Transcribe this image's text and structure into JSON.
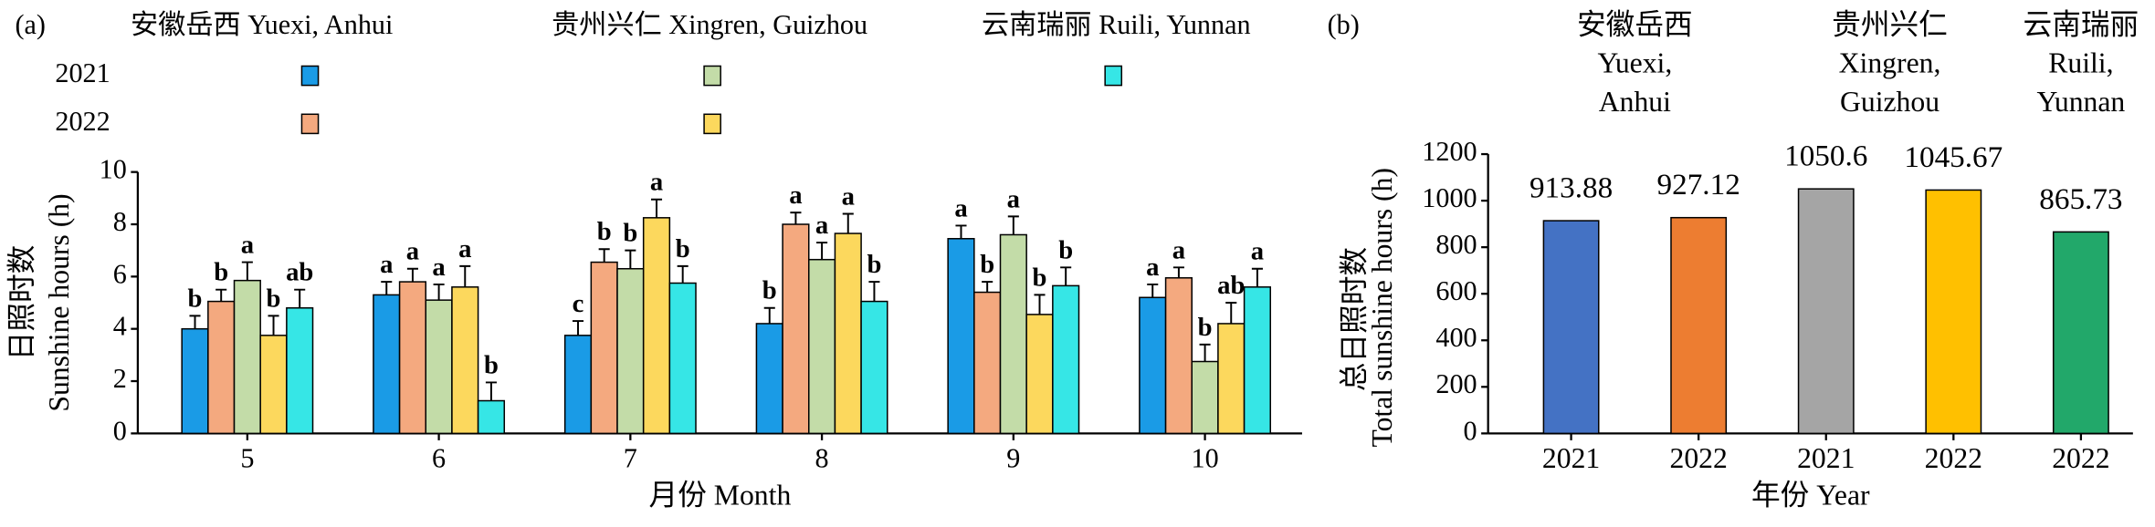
{
  "chart_data": [
    {
      "type": "grouped_bar_errors",
      "panel": "(a)",
      "legend": {
        "columns": [
          "安徽岳西 Yuexi, Anhui",
          "贵州兴仁 Xingren, Guizhou",
          "云南瑞丽 Ruili, Yunnan"
        ],
        "rows": [
          "2021",
          "2022"
        ]
      },
      "categories": [
        "5",
        "6",
        "7",
        "8",
        "9",
        "10"
      ],
      "series": [
        {
          "color": "#1a9be6",
          "values": [
            4.0,
            5.3,
            3.75,
            4.2,
            7.45,
            5.2
          ],
          "errors": [
            0.5,
            0.5,
            0.55,
            0.6,
            0.5,
            0.5
          ],
          "letters": [
            "b",
            "a",
            "c",
            "b",
            "a",
            "a"
          ]
        },
        {
          "color": "#f4a97f",
          "values": [
            5.05,
            5.8,
            6.55,
            8.0,
            5.4,
            5.95
          ],
          "errors": [
            0.45,
            0.5,
            0.5,
            0.45,
            0.4,
            0.4
          ],
          "letters": [
            "b",
            "a",
            "b",
            "a",
            "b",
            "a"
          ]
        },
        {
          "color": "#c3dca8",
          "values": [
            5.85,
            5.1,
            6.3,
            6.65,
            7.6,
            2.75
          ],
          "errors": [
            0.7,
            0.6,
            0.7,
            0.65,
            0.7,
            0.65
          ],
          "letters": [
            "a",
            "a",
            "b",
            "a",
            "a",
            "b"
          ]
        },
        {
          "color": "#fcd85d",
          "values": [
            3.75,
            5.6,
            8.25,
            7.65,
            4.55,
            4.2
          ],
          "errors": [
            0.75,
            0.8,
            0.7,
            0.75,
            0.75,
            0.8
          ],
          "letters": [
            "b",
            "a",
            "a",
            "a",
            "b",
            "ab"
          ]
        },
        {
          "color": "#36e6e6",
          "values": [
            4.8,
            1.25,
            5.75,
            5.05,
            5.65,
            5.6
          ],
          "errors": [
            0.7,
            0.7,
            0.65,
            0.75,
            0.7,
            0.7
          ],
          "letters": [
            "ab",
            "b",
            "b",
            "b",
            "b",
            "a"
          ]
        }
      ],
      "xlabel": "月份 Month",
      "ylabel": [
        "日照时数",
        "Sunshine hours (h)"
      ],
      "ylim": [
        0,
        10
      ],
      "yticks": [
        0,
        2,
        4,
        6,
        8,
        10
      ]
    },
    {
      "type": "bar",
      "panel": "(b)",
      "groups": [
        {
          "label": [
            "安徽岳西",
            "Yuexi,",
            "Anhui"
          ],
          "categories": [
            "2021",
            "2022"
          ],
          "values": [
            913.88,
            927.12
          ],
          "colors": [
            "#4472c4",
            "#ed7d31"
          ]
        },
        {
          "label": [
            "贵州兴仁",
            "Xingren,",
            "Guizhou"
          ],
          "categories": [
            "2021",
            "2022"
          ],
          "values": [
            1050.6,
            1045.67
          ],
          "colors": [
            "#a5a5a5",
            "#ffc000"
          ]
        },
        {
          "label": [
            "云南瑞丽",
            "Ruili,",
            "Yunnan"
          ],
          "categories": [
            "2022"
          ],
          "values": [
            865.73
          ],
          "colors": [
            "#22a86a"
          ]
        }
      ],
      "xlabel": "年份 Year",
      "ylabel": [
        "总日照时数",
        "Total sunshine hours (h)"
      ],
      "ylim": [
        0,
        1200
      ],
      "yticks": [
        0,
        200,
        400,
        600,
        800,
        1000,
        1200
      ]
    }
  ]
}
